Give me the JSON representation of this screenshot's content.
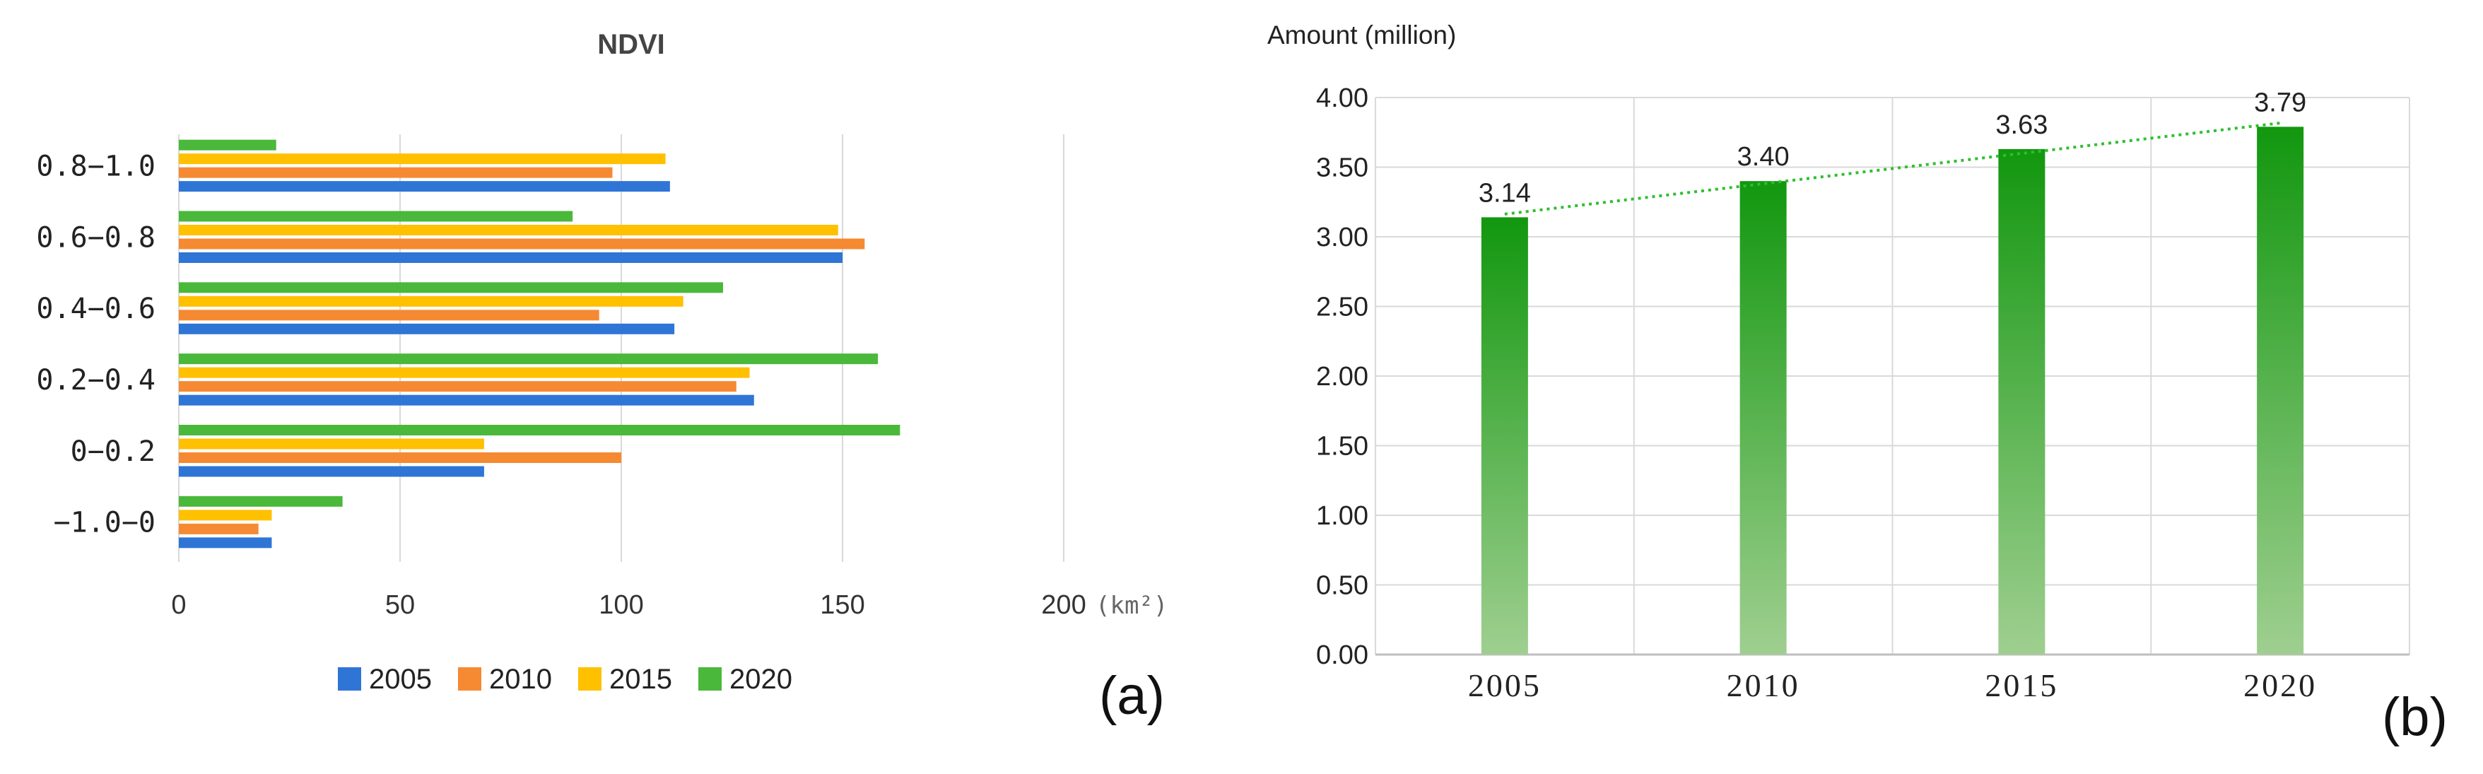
{
  "panels": {
    "a": {
      "label": "(a)"
    },
    "b": {
      "label": "(b)"
    }
  },
  "colors": {
    "series": [
      "#2e75d6",
      "#f58a32",
      "#ffc000",
      "#4ab83a"
    ],
    "grid": "#d9d9d9",
    "axis": "#bfbfbf",
    "bar_top": "#12970f",
    "bar_bottom": "#9fcf90",
    "trend": "#2fbf2f"
  },
  "chart_data": [
    {
      "type": "bar",
      "orientation": "horizontal",
      "title": "NDVI",
      "xlabel": "",
      "x_unit": "(km²)",
      "xlim": [
        0,
        200
      ],
      "x_ticks": [
        "0",
        "50",
        "100",
        "150",
        "200"
      ],
      "categories": [
        "0.8−1.0",
        "0.6−0.8",
        "0.4−0.6",
        "0.2−0.4",
        "0−0.2",
        "−1.0−0"
      ],
      "series": [
        {
          "name": "2005",
          "values": [
            111,
            150,
            112,
            130,
            69,
            21
          ]
        },
        {
          "name": "2010",
          "values": [
            98,
            155,
            95,
            126,
            100,
            18
          ]
        },
        {
          "name": "2015",
          "values": [
            110,
            149,
            114,
            129,
            69,
            21
          ]
        },
        {
          "name": "2020",
          "values": [
            22,
            89,
            123,
            158,
            163,
            37
          ]
        }
      ],
      "grid": true,
      "legend": "bottom"
    },
    {
      "type": "bar",
      "title": "",
      "ylabel": "Amount (million)",
      "xlabel": "",
      "categories": [
        "2005",
        "2010",
        "2015",
        "2020"
      ],
      "values": [
        3.14,
        3.4,
        3.63,
        3.79
      ],
      "data_labels": [
        "3.14",
        "3.40",
        "3.63",
        "3.79"
      ],
      "ylim": [
        0,
        4.0
      ],
      "y_ticks": [
        "0.00",
        "0.50",
        "1.00",
        "1.50",
        "2.00",
        "2.50",
        "3.00",
        "3.50",
        "4.00"
      ],
      "trendline": "linear",
      "grid": true,
      "legend": "none"
    }
  ]
}
